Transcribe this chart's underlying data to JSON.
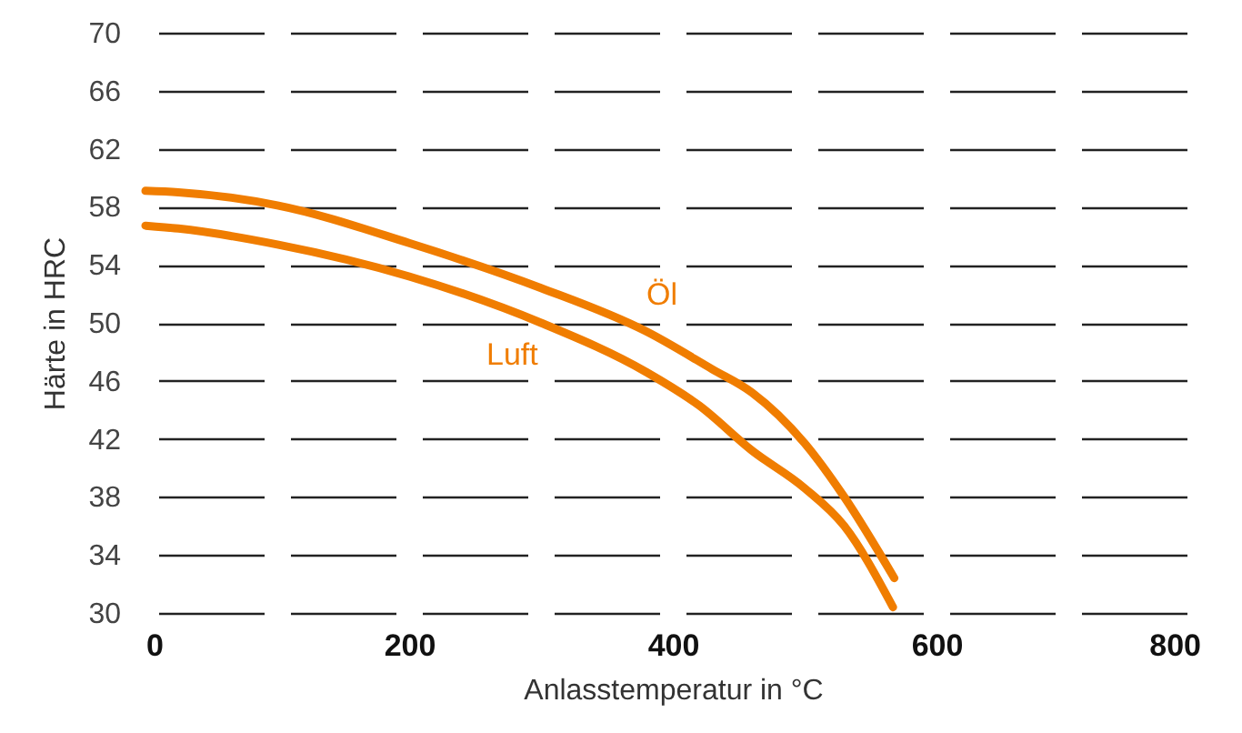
{
  "chart_data": {
    "type": "line",
    "xlabel": "Anlasstemperatur in °C",
    "ylabel": "Härte in HRC",
    "xlim": [
      0,
      800
    ],
    "xticks": [
      0,
      200,
      400,
      600,
      800
    ],
    "ylim": [
      30,
      70
    ],
    "yticks": [
      30,
      34,
      38,
      42,
      46,
      50,
      54,
      58,
      62,
      66,
      70
    ],
    "grid": "y",
    "series": [
      {
        "name": "Öl",
        "color": "#f07d00",
        "x": [
          0,
          25,
          100,
          200,
          300,
          380,
          430,
          460,
          500,
          530,
          568
        ],
        "values": [
          59.1,
          59,
          58.1,
          55.5,
          52.4,
          49.4,
          46.8,
          45.2,
          41.7,
          38,
          32.4
        ]
      },
      {
        "name": "Luft",
        "color": "#f07d00",
        "x": [
          0,
          25,
          100,
          200,
          300,
          380,
          420,
          460,
          500,
          530,
          567
        ],
        "values": [
          56.7,
          56.5,
          55.4,
          53.2,
          50,
          46.6,
          44.3,
          41.2,
          38.6,
          36,
          30.4
        ]
      }
    ]
  }
}
